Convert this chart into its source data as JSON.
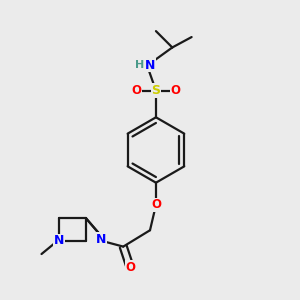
{
  "background_color": "#ebebeb",
  "bond_color": "#1a1a1a",
  "atom_colors": {
    "N": "#0000ff",
    "O": "#ff0000",
    "S": "#cccc00",
    "H": "#4a9a8a",
    "C": "#1a1a1a"
  },
  "figsize": [
    3.0,
    3.0
  ],
  "dpi": 100
}
